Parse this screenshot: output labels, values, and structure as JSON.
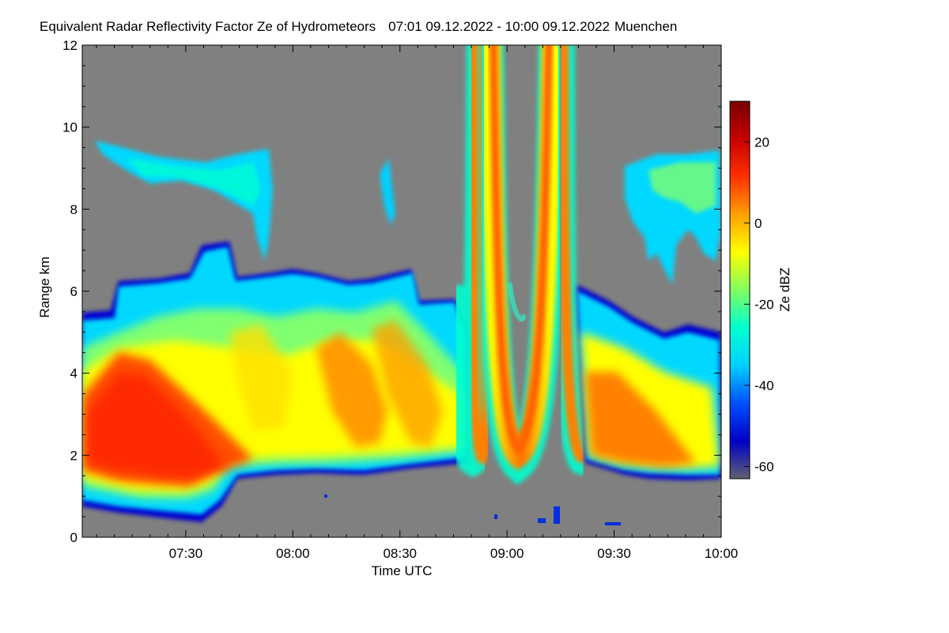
{
  "title": "Equivalent Radar Reflectivity Factor Ze of Hydrometeors",
  "period": "07:01 09.12.2022 - 10:00 09.12.2022",
  "location": "Muenchen",
  "colors": {
    "background_no_signal": "#808080",
    "colormap": [
      "#606070",
      "#0000c8",
      "#0050ff",
      "#00d0ff",
      "#00ffd0",
      "#80ff60",
      "#ffff00",
      "#ffa000",
      "#ff3000",
      "#c80000",
      "#780000"
    ]
  },
  "chart_data": {
    "type": "heatmap",
    "title": "Equivalent Radar Reflectivity Factor Ze of Hydrometeors   07:01 09.12.2022 - 10:00 09.12.2022 Muenchen",
    "xlabel": "Time UTC",
    "ylabel": "Range km",
    "x_range": [
      "07:01",
      "10:00"
    ],
    "x_ticks": [
      "07:30",
      "08:00",
      "08:30",
      "09:00",
      "09:30",
      "10:00"
    ],
    "y_range": [
      0,
      12
    ],
    "y_ticks": [
      "0",
      "2",
      "4",
      "6",
      "8",
      "10",
      "12"
    ],
    "colorbar": {
      "label": "Ze dBZ",
      "range": [
        -63,
        30
      ],
      "ticks": [
        "-60",
        "-40",
        "-20",
        "0",
        "20"
      ]
    },
    "features": [
      {
        "start": "07:01",
        "end": "08:40",
        "cloud_base_km": 1.5,
        "cloud_top_km": 6.0,
        "max_dbz": 15
      },
      {
        "start": "07:05",
        "end": "07:50",
        "cloud_base_km": 7.8,
        "cloud_top_km": 9.5,
        "max_dbz": -20
      },
      {
        "start": "08:40",
        "end": "09:20",
        "feature": "two U-shaped high-reflectivity bands extending above 12 km",
        "max_dbz": 15
      },
      {
        "start": "09:20",
        "end": "10:00",
        "cloud_base_km": 1.5,
        "cloud_top_km": 5.0,
        "max_dbz": 15
      },
      {
        "start": "09:25",
        "end": "10:00",
        "cloud_base_km": 6.0,
        "cloud_top_km": 9.5,
        "max_dbz": -15
      }
    ]
  }
}
